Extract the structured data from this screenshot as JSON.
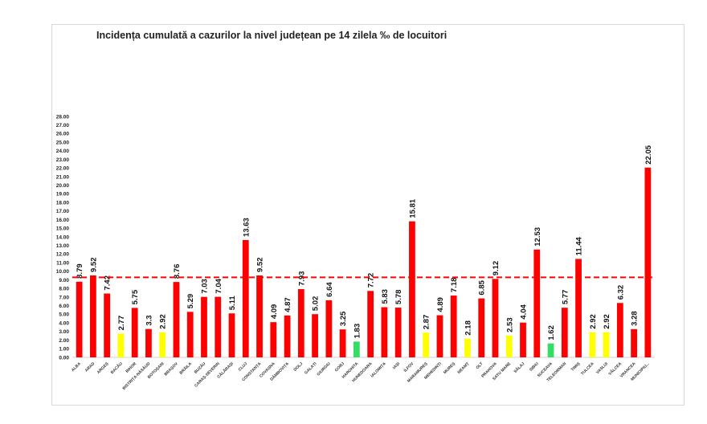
{
  "chart_data": {
    "type": "bar",
    "title": "Incidența cumulată a cazurilor la nivel județean pe 14 zilela ‰ de locuitori",
    "xlabel": "",
    "ylabel": "",
    "ylim": [
      0,
      28
    ],
    "ytick_step": 1,
    "grid": false,
    "threshold": 9.3,
    "threshold_color": "#ff0000",
    "colors": {
      "red": "#ff0000",
      "yellow": "#ffff00",
      "green": "#33dd66"
    },
    "categories": [
      "ALBA",
      "ARAD",
      "ARGEȘ",
      "BACĂU",
      "BIHOR",
      "BISTRIȚA-NĂSĂUD",
      "BOTOȘANI",
      "BRAȘOV",
      "BRĂILA",
      "BUZĂU",
      "CARAȘ-SEVERIN",
      "CĂLĂRAȘI",
      "CLUJ",
      "CONSTANȚA",
      "COVASNA",
      "DÂMBOVIȚA",
      "DOLJ",
      "GALAȚI",
      "GIURGIU",
      "GORJ",
      "HARGHITA",
      "HUNEDOARA",
      "IALOMIȚA",
      "IAȘI",
      "ILFOV",
      "MARAMUREȘ",
      "MEHEDINȚI",
      "MUREȘ",
      "NEAMȚ",
      "OLT",
      "PRAHOVA",
      "SATU MARE",
      "SĂLAJ",
      "SIBIU",
      "SUCEAVA",
      "TELEORMAN",
      "TIMIȘ",
      "TULCEA",
      "VASLUI",
      "VÂLCEA",
      "VRANCEA",
      "MUNICIPIU..."
    ],
    "values": [
      8.79,
      9.52,
      7.42,
      2.77,
      5.75,
      3.3,
      2.92,
      8.76,
      5.29,
      7.03,
      7.04,
      5.11,
      13.63,
      9.52,
      4.09,
      4.87,
      7.93,
      5.02,
      6.64,
      3.25,
      1.83,
      7.72,
      5.83,
      5.78,
      15.81,
      2.87,
      4.89,
      7.18,
      2.18,
      6.85,
      9.12,
      2.53,
      4.04,
      12.53,
      1.62,
      5.77,
      11.44,
      2.92,
      2.92,
      6.32,
      3.28,
      22.05
    ],
    "labels": [
      "8.79",
      "9.52",
      "7.42",
      "2.77",
      "5.75",
      "3.3",
      "2.92",
      "8.76",
      "5.29",
      "7.03",
      "7.04",
      "5.11",
      "13.63",
      "9.52",
      "4.09",
      "4.87",
      "7.93",
      "5.02",
      "6.64",
      "3.25",
      "1.83",
      "7.72",
      "5.83",
      "5.78",
      "15.81",
      "2.87",
      "4.89",
      "7.18",
      "2.18",
      "6.85",
      "9.12",
      "2.53",
      "4.04",
      "12.53",
      "1.62",
      "5.77",
      "11.44",
      "2.92",
      "2.92",
      "6.32",
      "3.28",
      "22.05"
    ],
    "bar_colors": [
      "red",
      "red",
      "red",
      "yellow",
      "red",
      "red",
      "yellow",
      "red",
      "red",
      "red",
      "red",
      "red",
      "red",
      "red",
      "red",
      "red",
      "red",
      "red",
      "red",
      "red",
      "green",
      "red",
      "red",
      "red",
      "red",
      "yellow",
      "red",
      "red",
      "yellow",
      "red",
      "red",
      "yellow",
      "red",
      "red",
      "green",
      "red",
      "red",
      "yellow",
      "yellow",
      "red",
      "red",
      "red"
    ]
  }
}
